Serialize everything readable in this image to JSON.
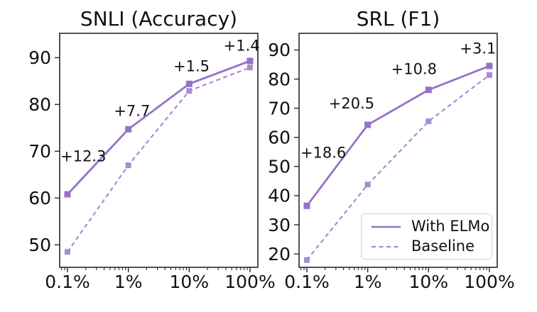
{
  "figure": {
    "background": "#ffffff",
    "axis_color": "#2a2a2a",
    "text_color": "#111111"
  },
  "legend": {
    "position": "lower right of SRL panel",
    "entries": [
      {
        "label": "With ELMo",
        "style": "solid",
        "color": "#9572c8"
      },
      {
        "label": "Baseline",
        "style": "dashed",
        "color": "#a78dd4"
      }
    ]
  },
  "chart_data": [
    {
      "type": "line",
      "title": "SNLI (Accuracy)",
      "xlabel": "",
      "ylabel": "",
      "x_scale": "log",
      "x_values": [
        0.1,
        1,
        10,
        100
      ],
      "x_tick_labels": [
        "0.1%",
        "1%",
        "10%",
        "100%"
      ],
      "y_ticks": [
        50,
        60,
        70,
        80,
        90
      ],
      "ylim": [
        45.2,
        95.2
      ],
      "grid": false,
      "series": [
        {
          "name": "With ELMo",
          "style": "solid",
          "color": "#9572c8",
          "marker": "square",
          "values": [
            60.8,
            74.7,
            84.4,
            89.3
          ]
        },
        {
          "name": "Baseline",
          "style": "dashed",
          "color": "#a78dd4",
          "marker": "square",
          "values": [
            48.5,
            67.0,
            82.9,
            87.9
          ]
        }
      ],
      "annotations": [
        {
          "text": "+12.3",
          "fx": 0.004,
          "y": 69.0,
          "anchor": "start"
        },
        {
          "text": "+7.7",
          "fx": 0.365,
          "y": 78.7,
          "anchor": "middle"
        },
        {
          "text": "+1.5",
          "fx": 0.665,
          "y": 88.2,
          "anchor": "middle"
        },
        {
          "text": "+1.4",
          "fx": 0.918,
          "y": 92.6,
          "anchor": "middle"
        }
      ]
    },
    {
      "type": "line",
      "title": "SRL (F1)",
      "xlabel": "",
      "ylabel": "",
      "x_scale": "log",
      "x_values": [
        0.1,
        1,
        10,
        100
      ],
      "x_tick_labels": [
        "0.1%",
        "1%",
        "10%",
        "100%"
      ],
      "y_ticks": [
        20,
        30,
        40,
        50,
        60,
        70,
        80,
        90
      ],
      "ylim": [
        15.4,
        95.7
      ],
      "grid": false,
      "series": [
        {
          "name": "With ELMo",
          "style": "solid",
          "color": "#9572c8",
          "marker": "square",
          "values": [
            36.5,
            64.3,
            76.3,
            84.5
          ]
        },
        {
          "name": "Baseline",
          "style": "dashed",
          "color": "#a78dd4",
          "marker": "square",
          "values": [
            17.9,
            43.8,
            65.5,
            81.4
          ]
        }
      ],
      "annotations": [
        {
          "text": "+18.6",
          "fx": 0.007,
          "y": 54.8,
          "anchor": "start"
        },
        {
          "text": "+20.5",
          "fx": 0.265,
          "y": 71.7,
          "anchor": "middle"
        },
        {
          "text": "+10.8",
          "fx": 0.58,
          "y": 83.5,
          "anchor": "middle"
        },
        {
          "text": "+3.1",
          "fx": 0.903,
          "y": 90.6,
          "anchor": "middle"
        }
      ]
    }
  ]
}
